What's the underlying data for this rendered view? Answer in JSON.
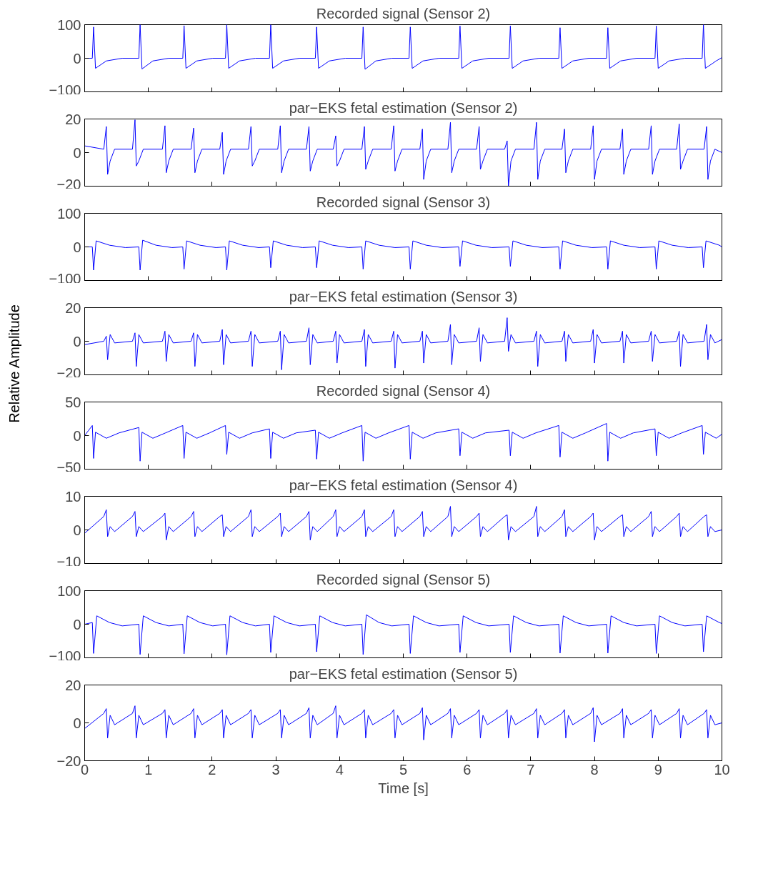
{
  "chart_data": [
    {
      "type": "line",
      "title": "Recorded signal (Sensor 2)",
      "tick_labels": "y",
      "xlim": [
        0,
        10
      ],
      "xticks": [
        0,
        1,
        2,
        3,
        4,
        5,
        6,
        7,
        8,
        9,
        10
      ],
      "ylim": [
        -100,
        100
      ],
      "yticks": [
        {
          "value": -100,
          "label": "−100"
        },
        0,
        100
      ],
      "x": [
        0,
        0.12,
        0.14,
        0.17,
        0.34,
        0.59,
        0.85,
        0.87,
        0.9,
        1.07,
        1.32,
        1.54,
        1.56,
        1.59,
        1.76,
        2.01,
        2.21,
        2.23,
        2.26,
        2.43,
        2.68,
        2.9,
        2.92,
        2.95,
        3.12,
        3.37,
        3.62,
        3.64,
        3.67,
        3.84,
        4.09,
        4.35,
        4.37,
        4.4,
        4.57,
        4.82,
        5.09,
        5.11,
        5.14,
        5.31,
        5.56,
        5.87,
        5.89,
        5.92,
        6.09,
        6.34,
        6.66,
        6.68,
        6.71,
        6.88,
        7.13,
        7.44,
        7.46,
        7.49,
        7.66,
        7.91,
        8.19,
        8.21,
        8.24,
        8.41,
        8.66,
        8.95,
        8.97,
        9.0,
        9.17,
        9.42,
        9.69,
        9.71,
        9.74,
        9.91,
        10
      ],
      "series": [
        {
          "color": "#0000ff",
          "values": [
            0,
            0,
            93,
            -30,
            -8,
            0,
            0,
            100,
            -32,
            -8,
            0,
            0,
            97,
            -30,
            -8,
            0,
            0,
            100,
            -30,
            -8,
            0,
            0,
            100,
            -30,
            -8,
            0,
            0,
            93,
            -30,
            -8,
            0,
            0,
            93,
            -33,
            -8,
            0,
            0,
            93,
            -30,
            -8,
            0,
            0,
            96,
            -30,
            -8,
            0,
            0,
            96,
            -30,
            -8,
            0,
            0,
            91,
            -30,
            -8,
            0,
            0,
            91,
            -30,
            -8,
            0,
            0,
            96,
            -30,
            -8,
            0,
            0,
            100,
            -30,
            -8,
            2
          ]
        }
      ]
    },
    {
      "type": "line",
      "title": "par−EKS fetal estimation (Sensor 2)",
      "tick_labels": "y",
      "xlim": [
        0,
        10
      ],
      "xticks": [
        0,
        1,
        2,
        3,
        4,
        5,
        6,
        7,
        8,
        9,
        10
      ],
      "ylim": [
        -20,
        20
      ],
      "yticks": [
        {
          "value": -20,
          "label": "−20"
        },
        0,
        20
      ],
      "x": [
        0,
        0.3,
        0.34,
        0.36,
        0.4,
        0.47,
        0.75,
        0.79,
        0.81,
        0.85,
        0.92,
        1.22,
        1.26,
        1.28,
        1.32,
        1.39,
        1.67,
        1.71,
        1.73,
        1.77,
        1.84,
        2.12,
        2.16,
        2.18,
        2.22,
        2.29,
        2.57,
        2.61,
        2.63,
        2.67,
        2.74,
        3.03,
        3.07,
        3.09,
        3.13,
        3.2,
        3.48,
        3.52,
        3.54,
        3.58,
        3.65,
        3.9,
        3.94,
        3.96,
        4.0,
        4.07,
        4.35,
        4.39,
        4.41,
        4.45,
        4.52,
        4.81,
        4.85,
        4.87,
        4.91,
        4.98,
        5.26,
        5.3,
        5.32,
        5.36,
        5.43,
        5.7,
        5.74,
        5.76,
        5.8,
        5.87,
        6.15,
        6.19,
        6.21,
        6.25,
        6.32,
        6.59,
        6.63,
        6.65,
        6.69,
        6.76,
        7.05,
        7.09,
        7.11,
        7.15,
        7.22,
        7.49,
        7.53,
        7.55,
        7.59,
        7.66,
        7.94,
        7.98,
        8.0,
        8.04,
        8.11,
        8.4,
        8.44,
        8.46,
        8.5,
        8.57,
        8.85,
        8.89,
        8.91,
        8.95,
        9.02,
        9.29,
        9.33,
        9.35,
        9.39,
        9.46,
        9.72,
        9.76,
        9.78,
        9.82,
        9.89,
        10
      ],
      "series": [
        {
          "color": "#0000ff",
          "values": [
            4,
            2,
            15.5,
            -13,
            -5,
            2,
            2,
            19.5,
            -8,
            -5,
            2,
            2,
            16,
            -12,
            -5,
            2,
            2,
            14.6,
            -12,
            -5,
            2,
            2,
            12,
            -13,
            -5,
            2,
            2,
            15.5,
            -8,
            -5,
            2,
            2,
            16,
            -12,
            -5,
            2,
            2,
            15.5,
            -11,
            -5,
            2,
            2,
            10,
            -8,
            -5,
            2,
            2,
            15.5,
            -10,
            -5,
            2,
            2,
            16,
            -11,
            -5,
            2,
            2,
            14,
            -16,
            -5,
            2,
            2,
            18,
            -12,
            -5,
            2,
            2,
            15.5,
            -10,
            -5,
            2,
            2,
            7,
            -20,
            -5,
            2,
            2,
            18,
            -16,
            -5,
            2,
            2,
            14,
            -12,
            -5,
            2,
            2,
            16,
            -16,
            -5,
            2,
            2,
            14,
            -13,
            -5,
            2,
            2,
            16,
            -13,
            -5,
            2,
            2,
            17,
            -10,
            -5,
            2,
            2,
            15.5,
            -16,
            -5,
            2,
            0
          ]
        }
      ]
    },
    {
      "type": "line",
      "title": "Recorded signal (Sensor 3)",
      "tick_labels": "y",
      "xlim": [
        0,
        10
      ],
      "xticks": [
        0,
        1,
        2,
        3,
        4,
        5,
        6,
        7,
        8,
        9,
        10
      ],
      "ylim": [
        -100,
        100
      ],
      "yticks": [
        {
          "value": -100,
          "label": "−100"
        },
        0,
        100
      ],
      "x": [
        0,
        0.12,
        0.14,
        0.18,
        0.39,
        0.64,
        0.85,
        0.87,
        0.91,
        1.12,
        1.37,
        1.54,
        1.56,
        1.6,
        1.81,
        2.06,
        2.21,
        2.23,
        2.27,
        2.48,
        2.73,
        2.9,
        2.92,
        2.96,
        3.17,
        3.42,
        3.62,
        3.64,
        3.68,
        3.89,
        4.14,
        4.35,
        4.37,
        4.41,
        4.62,
        4.87,
        5.09,
        5.11,
        5.15,
        5.36,
        5.61,
        5.87,
        5.89,
        5.93,
        6.14,
        6.39,
        6.66,
        6.68,
        6.72,
        6.93,
        7.18,
        7.44,
        7.46,
        7.5,
        7.71,
        7.96,
        8.19,
        8.21,
        8.25,
        8.46,
        8.71,
        8.95,
        8.97,
        9.01,
        9.22,
        9.47,
        9.69,
        9.71,
        9.75,
        9.96,
        10
      ],
      "series": [
        {
          "color": "#0000ff",
          "values": [
            0,
            0,
            -69,
            18,
            5,
            -2,
            0,
            -69,
            20,
            5,
            -2,
            0,
            -66,
            18,
            5,
            -2,
            0,
            -69,
            18,
            5,
            -2,
            0,
            -62,
            18,
            5,
            -2,
            0,
            -62,
            18,
            5,
            -2,
            0,
            -66,
            18,
            5,
            -2,
            0,
            -66,
            18,
            5,
            -2,
            0,
            -58,
            18,
            5,
            -2,
            0,
            -58,
            18,
            5,
            -2,
            0,
            -66,
            18,
            5,
            -2,
            0,
            -66,
            18,
            5,
            -2,
            0,
            -66,
            18,
            5,
            -2,
            0,
            -62,
            18,
            5,
            0
          ]
        }
      ]
    },
    {
      "type": "line",
      "title": "par−EKS fetal estimation (Sensor 3)",
      "ylabel": "Relative Amplitude",
      "tick_labels": "y",
      "xlim": [
        0,
        10
      ],
      "xticks": [
        0,
        1,
        2,
        3,
        4,
        5,
        6,
        7,
        8,
        9,
        10
      ],
      "ylim": [
        -20,
        20
      ],
      "yticks": [
        {
          "value": -20,
          "label": "−20"
        },
        0,
        20
      ],
      "x": [
        0,
        0.3,
        0.34,
        0.36,
        0.4,
        0.47,
        0.75,
        0.79,
        0.81,
        0.85,
        0.92,
        1.22,
        1.26,
        1.28,
        1.32,
        1.39,
        1.67,
        1.71,
        1.73,
        1.77,
        1.84,
        2.12,
        2.16,
        2.18,
        2.22,
        2.29,
        2.57,
        2.61,
        2.63,
        2.67,
        2.74,
        3.03,
        3.07,
        3.09,
        3.13,
        3.2,
        3.48,
        3.52,
        3.54,
        3.58,
        3.65,
        3.9,
        3.94,
        3.96,
        4.0,
        4.07,
        4.35,
        4.39,
        4.41,
        4.45,
        4.52,
        4.81,
        4.85,
        4.87,
        4.91,
        4.98,
        5.26,
        5.3,
        5.32,
        5.36,
        5.43,
        5.7,
        5.74,
        5.76,
        5.8,
        5.87,
        6.15,
        6.19,
        6.21,
        6.25,
        6.32,
        6.59,
        6.63,
        6.65,
        6.69,
        6.76,
        7.05,
        7.09,
        7.11,
        7.15,
        7.22,
        7.49,
        7.53,
        7.55,
        7.59,
        7.66,
        7.94,
        7.98,
        8.0,
        8.04,
        8.11,
        8.4,
        8.44,
        8.46,
        8.5,
        8.57,
        8.85,
        8.89,
        8.91,
        8.95,
        9.02,
        9.29,
        9.33,
        9.35,
        9.39,
        9.46,
        9.72,
        9.76,
        9.78,
        9.82,
        9.89,
        10
      ],
      "series": [
        {
          "color": "#0000ff",
          "values": [
            -2,
            0,
            3,
            -11,
            4,
            -1,
            0,
            5,
            -15,
            4,
            -1,
            0,
            6,
            -12,
            4,
            -1,
            0,
            5,
            -15,
            4,
            -1,
            0,
            7,
            -14,
            4,
            -1,
            0,
            6,
            -15,
            4,
            -1,
            0,
            6,
            -17,
            4,
            -1,
            0,
            8,
            -14,
            4,
            -1,
            0,
            6,
            -13,
            4,
            -1,
            0,
            7,
            -15,
            4,
            -1,
            0,
            6,
            -16,
            4,
            -1,
            0,
            6,
            -13,
            4,
            -1,
            0,
            10,
            -14,
            4,
            -1,
            0,
            8,
            -12,
            4,
            -1,
            0,
            14,
            -6,
            4,
            -1,
            0,
            6,
            -15,
            4,
            -1,
            0,
            6,
            -12,
            4,
            -1,
            0,
            7,
            -13,
            4,
            -1,
            0,
            6,
            -13,
            4,
            -1,
            0,
            6,
            -12,
            4,
            -1,
            0,
            6,
            -15,
            4,
            -1,
            0,
            10,
            -11,
            4,
            -1,
            1
          ]
        }
      ]
    },
    {
      "type": "line",
      "title": "Recorded signal (Sensor 4)",
      "tick_labels": "y",
      "xlim": [
        0,
        10
      ],
      "xticks": [
        0,
        1,
        2,
        3,
        4,
        5,
        6,
        7,
        8,
        9,
        10
      ],
      "ylim": [
        -50,
        50
      ],
      "yticks": [
        {
          "value": -50,
          "label": "−50"
        },
        0,
        50
      ],
      "x": [
        0,
        0.12,
        0.14,
        0.17,
        0.34,
        0.54,
        0.85,
        0.87,
        0.9,
        1.07,
        1.27,
        1.54,
        1.56,
        1.59,
        1.76,
        1.96,
        2.21,
        2.23,
        2.26,
        2.43,
        2.63,
        2.9,
        2.92,
        2.95,
        3.12,
        3.32,
        3.62,
        3.64,
        3.67,
        3.84,
        4.04,
        4.35,
        4.37,
        4.4,
        4.57,
        4.77,
        5.09,
        5.11,
        5.14,
        5.31,
        5.51,
        5.87,
        5.89,
        5.92,
        6.09,
        6.29,
        6.66,
        6.68,
        6.71,
        6.88,
        7.08,
        7.44,
        7.46,
        7.49,
        7.66,
        7.86,
        8.19,
        8.21,
        8.24,
        8.41,
        8.61,
        8.95,
        8.97,
        9.0,
        9.17,
        9.37,
        9.69,
        9.71,
        9.74,
        9.91,
        10
      ],
      "series": [
        {
          "color": "#0000ff",
          "values": [
            0,
            15,
            -34,
            5,
            -4,
            4,
            12,
            -38,
            5,
            -4,
            4,
            15,
            -34,
            5,
            -4,
            4,
            15,
            -28,
            5,
            -4,
            4,
            10,
            -34,
            5,
            -4,
            4,
            8,
            -35,
            5,
            -4,
            4,
            15,
            -38,
            5,
            -4,
            4,
            15,
            -35,
            5,
            -4,
            4,
            10,
            -30,
            5,
            -4,
            4,
            8,
            -30,
            5,
            -4,
            4,
            15,
            -32,
            5,
            -4,
            4,
            18,
            -38,
            5,
            -4,
            4,
            10,
            -30,
            5,
            -4,
            4,
            15,
            -28,
            5,
            -4,
            2
          ]
        }
      ]
    },
    {
      "type": "line",
      "title": "par−EKS fetal estimation (Sensor 4)",
      "tick_labels": "y",
      "xlim": [
        0,
        10
      ],
      "xticks": [
        0,
        1,
        2,
        3,
        4,
        5,
        6,
        7,
        8,
        9,
        10
      ],
      "ylim": [
        -10,
        10
      ],
      "yticks": [
        {
          "value": -10,
          "label": "−10"
        },
        0,
        10
      ],
      "x": [
        0,
        0.3,
        0.34,
        0.36,
        0.4,
        0.47,
        0.75,
        0.79,
        0.81,
        0.85,
        0.92,
        1.22,
        1.26,
        1.28,
        1.32,
        1.39,
        1.67,
        1.71,
        1.73,
        1.77,
        1.84,
        2.12,
        2.16,
        2.18,
        2.22,
        2.29,
        2.57,
        2.61,
        2.63,
        2.67,
        2.74,
        3.03,
        3.07,
        3.09,
        3.13,
        3.2,
        3.48,
        3.52,
        3.54,
        3.58,
        3.65,
        3.9,
        3.94,
        3.96,
        4.0,
        4.07,
        4.35,
        4.39,
        4.41,
        4.45,
        4.52,
        4.81,
        4.85,
        4.87,
        4.91,
        4.98,
        5.26,
        5.3,
        5.32,
        5.36,
        5.43,
        5.7,
        5.74,
        5.76,
        5.8,
        5.87,
        6.15,
        6.19,
        6.21,
        6.25,
        6.32,
        6.59,
        6.63,
        6.65,
        6.69,
        6.76,
        7.05,
        7.09,
        7.11,
        7.15,
        7.22,
        7.49,
        7.53,
        7.55,
        7.59,
        7.66,
        7.94,
        7.98,
        8.0,
        8.04,
        8.11,
        8.4,
        8.44,
        8.46,
        8.5,
        8.57,
        8.85,
        8.89,
        8.91,
        8.95,
        9.02,
        9.29,
        9.33,
        9.35,
        9.39,
        9.46,
        9.72,
        9.76,
        9.78,
        9.82,
        9.89,
        10
      ],
      "series": [
        {
          "color": "#0000ff",
          "values": [
            -1,
            4,
            6,
            -2,
            1,
            -0.5,
            4,
            5.5,
            -2,
            1,
            -0.5,
            4,
            5,
            -3,
            1,
            -0.5,
            4,
            5.5,
            -2,
            1,
            -0.5,
            4,
            4.5,
            -2,
            1,
            -0.5,
            4,
            6,
            -2,
            1,
            -0.5,
            4,
            5,
            -2,
            1,
            -0.5,
            4,
            5.5,
            -3,
            1,
            -0.5,
            4,
            6,
            -2,
            1,
            -0.5,
            4,
            6,
            -2,
            1,
            -0.5,
            4,
            6,
            -2,
            1,
            -0.5,
            4,
            5.5,
            -2,
            1,
            -0.5,
            4,
            7,
            -2,
            1,
            -0.5,
            4,
            5,
            -2,
            1,
            -0.5,
            4,
            4.5,
            -3,
            1,
            -0.5,
            4,
            7,
            -2,
            1,
            -0.5,
            4,
            6,
            -2,
            1,
            -0.5,
            4,
            5,
            -3,
            1,
            -0.5,
            4,
            4.5,
            -2,
            1,
            -0.5,
            4,
            5.5,
            -2,
            1,
            -0.5,
            4,
            5,
            -2,
            1,
            -0.5,
            4,
            4.5,
            -2,
            1,
            -0.5,
            0
          ]
        }
      ]
    },
    {
      "type": "line",
      "title": "Recorded signal (Sensor 5)",
      "tick_labels": "y",
      "xlim": [
        0,
        10
      ],
      "xticks": [
        0,
        1,
        2,
        3,
        4,
        5,
        6,
        7,
        8,
        9,
        10
      ],
      "ylim": [
        -100,
        100
      ],
      "yticks": [
        {
          "value": -100,
          "label": "−100"
        },
        0,
        100
      ],
      "x": [
        0,
        0.12,
        0.14,
        0.19,
        0.39,
        0.59,
        0.85,
        0.87,
        0.92,
        1.12,
        1.32,
        1.54,
        1.56,
        1.61,
        1.81,
        2.01,
        2.21,
        2.23,
        2.28,
        2.48,
        2.68,
        2.9,
        2.92,
        2.97,
        3.17,
        3.37,
        3.62,
        3.64,
        3.69,
        3.89,
        4.09,
        4.35,
        4.37,
        4.42,
        4.62,
        4.82,
        5.09,
        5.11,
        5.16,
        5.36,
        5.56,
        5.87,
        5.89,
        5.94,
        6.14,
        6.34,
        6.66,
        6.68,
        6.73,
        6.93,
        7.13,
        7.44,
        7.46,
        7.51,
        7.71,
        7.91,
        8.19,
        8.21,
        8.26,
        8.46,
        8.66,
        8.95,
        8.97,
        9.02,
        9.22,
        9.42,
        9.69,
        9.71,
        9.76,
        9.96,
        10
      ],
      "series": [
        {
          "color": "#0000ff",
          "values": [
            0,
            5,
            -87,
            25,
            5,
            -5,
            0,
            -90,
            25,
            5,
            -5,
            0,
            -88,
            25,
            5,
            -5,
            0,
            -91,
            25,
            5,
            -5,
            0,
            -84,
            25,
            5,
            -5,
            0,
            -82,
            25,
            5,
            -5,
            0,
            -90,
            28,
            5,
            -5,
            0,
            -87,
            25,
            5,
            -5,
            0,
            -84,
            25,
            5,
            -5,
            0,
            -84,
            25,
            5,
            -5,
            0,
            -86,
            25,
            5,
            -5,
            0,
            -86,
            25,
            5,
            -5,
            0,
            -87,
            25,
            5,
            -5,
            0,
            -82,
            25,
            5,
            2
          ]
        }
      ]
    },
    {
      "type": "line",
      "title": "par−EKS fetal estimation (Sensor 5)",
      "xlabel": "Time [s]",
      "xlim": [
        0,
        10
      ],
      "xticks": [
        0,
        1,
        2,
        3,
        4,
        5,
        6,
        7,
        8,
        9,
        10
      ],
      "ylim": [
        -20,
        20
      ],
      "yticks": [
        {
          "value": -20,
          "label": "−20"
        },
        0,
        20
      ],
      "x": [
        0,
        0.3,
        0.34,
        0.36,
        0.4,
        0.47,
        0.75,
        0.79,
        0.81,
        0.85,
        0.92,
        1.22,
        1.26,
        1.28,
        1.32,
        1.39,
        1.67,
        1.71,
        1.73,
        1.77,
        1.84,
        2.12,
        2.16,
        2.18,
        2.22,
        2.29,
        2.57,
        2.61,
        2.63,
        2.67,
        2.74,
        3.03,
        3.07,
        3.09,
        3.13,
        3.2,
        3.48,
        3.52,
        3.54,
        3.58,
        3.65,
        3.9,
        3.94,
        3.96,
        4.0,
        4.07,
        4.35,
        4.39,
        4.41,
        4.45,
        4.52,
        4.81,
        4.85,
        4.87,
        4.91,
        4.98,
        5.26,
        5.3,
        5.32,
        5.36,
        5.43,
        5.7,
        5.74,
        5.76,
        5.8,
        5.87,
        6.15,
        6.19,
        6.21,
        6.25,
        6.32,
        6.59,
        6.63,
        6.65,
        6.69,
        6.76,
        7.05,
        7.09,
        7.11,
        7.15,
        7.22,
        7.49,
        7.53,
        7.55,
        7.59,
        7.66,
        7.94,
        7.98,
        8.0,
        8.04,
        8.11,
        8.4,
        8.44,
        8.46,
        8.5,
        8.57,
        8.85,
        8.89,
        8.91,
        8.95,
        9.02,
        9.29,
        9.33,
        9.35,
        9.39,
        9.46,
        9.72,
        9.76,
        9.78,
        9.82,
        9.89,
        10
      ],
      "series": [
        {
          "color": "#0000ff",
          "values": [
            -3,
            5,
            7.5,
            -8,
            4,
            -1,
            5,
            9,
            -8,
            4,
            -1,
            5,
            7,
            -8,
            4,
            -1,
            5,
            7.5,
            -8,
            4,
            -1,
            5,
            7,
            -8,
            4,
            -1,
            5,
            7,
            -8,
            4,
            -1,
            5,
            7,
            -8,
            4,
            -1,
            5,
            8,
            -8,
            4,
            -1,
            5,
            9,
            -8,
            4,
            -1,
            5,
            7,
            -8,
            4,
            -1,
            5,
            7,
            -8,
            4,
            -1,
            5,
            8,
            -9,
            4,
            -1,
            5,
            7.5,
            -8,
            4,
            -1,
            5,
            7,
            -8,
            4,
            -1,
            5,
            7,
            -8,
            4,
            -1,
            5,
            7.5,
            -8,
            4,
            -1,
            5,
            7,
            -8,
            4,
            -1,
            5,
            8,
            -10,
            4,
            -1,
            5,
            7.5,
            -8,
            4,
            -1,
            5,
            7,
            -8,
            4,
            -1,
            5,
            7.5,
            -8,
            4,
            -1,
            5,
            7,
            -8,
            4,
            -1,
            0
          ]
        }
      ]
    }
  ]
}
